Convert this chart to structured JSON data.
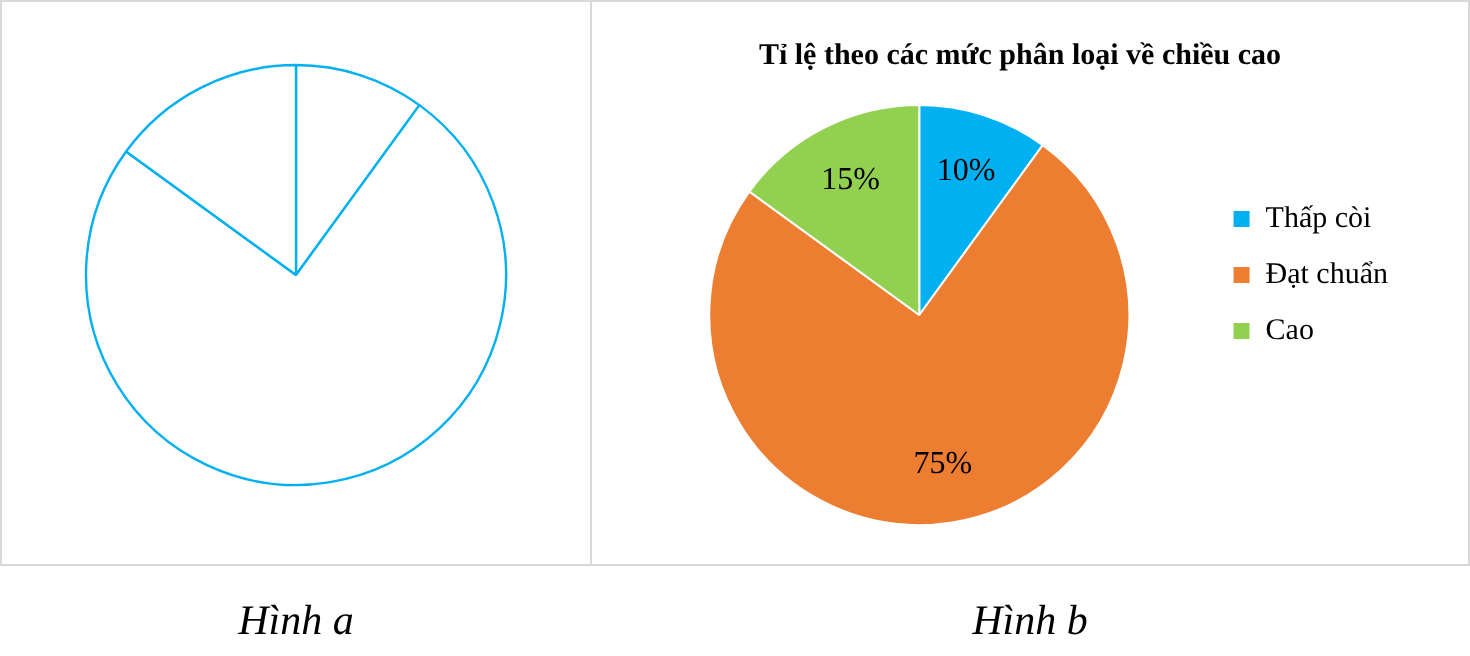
{
  "chart_data": [
    {
      "type": "pie",
      "categories": [
        null,
        null,
        null
      ],
      "values": [
        10,
        75,
        15
      ],
      "colors": [
        "#ffffff",
        "#ffffff",
        "#ffffff"
      ],
      "color": "#00b0f0",
      "legend": false,
      "annotations": [
        "Hình a"
      ]
    },
    {
      "type": "pie",
      "title": "Tỉ lệ theo các mức phân loại về chiều cao",
      "categories": [
        "Thấp còi",
        "Đạt chuẩn",
        "Cao"
      ],
      "values": [
        10,
        75,
        15
      ],
      "colors": [
        "#00b0f0",
        "#ed7d31",
        "#92d050"
      ],
      "value_labels": [
        "10%",
        "75%",
        "15%"
      ],
      "legend": "right",
      "annotations": [
        "Hình b"
      ]
    }
  ]
}
